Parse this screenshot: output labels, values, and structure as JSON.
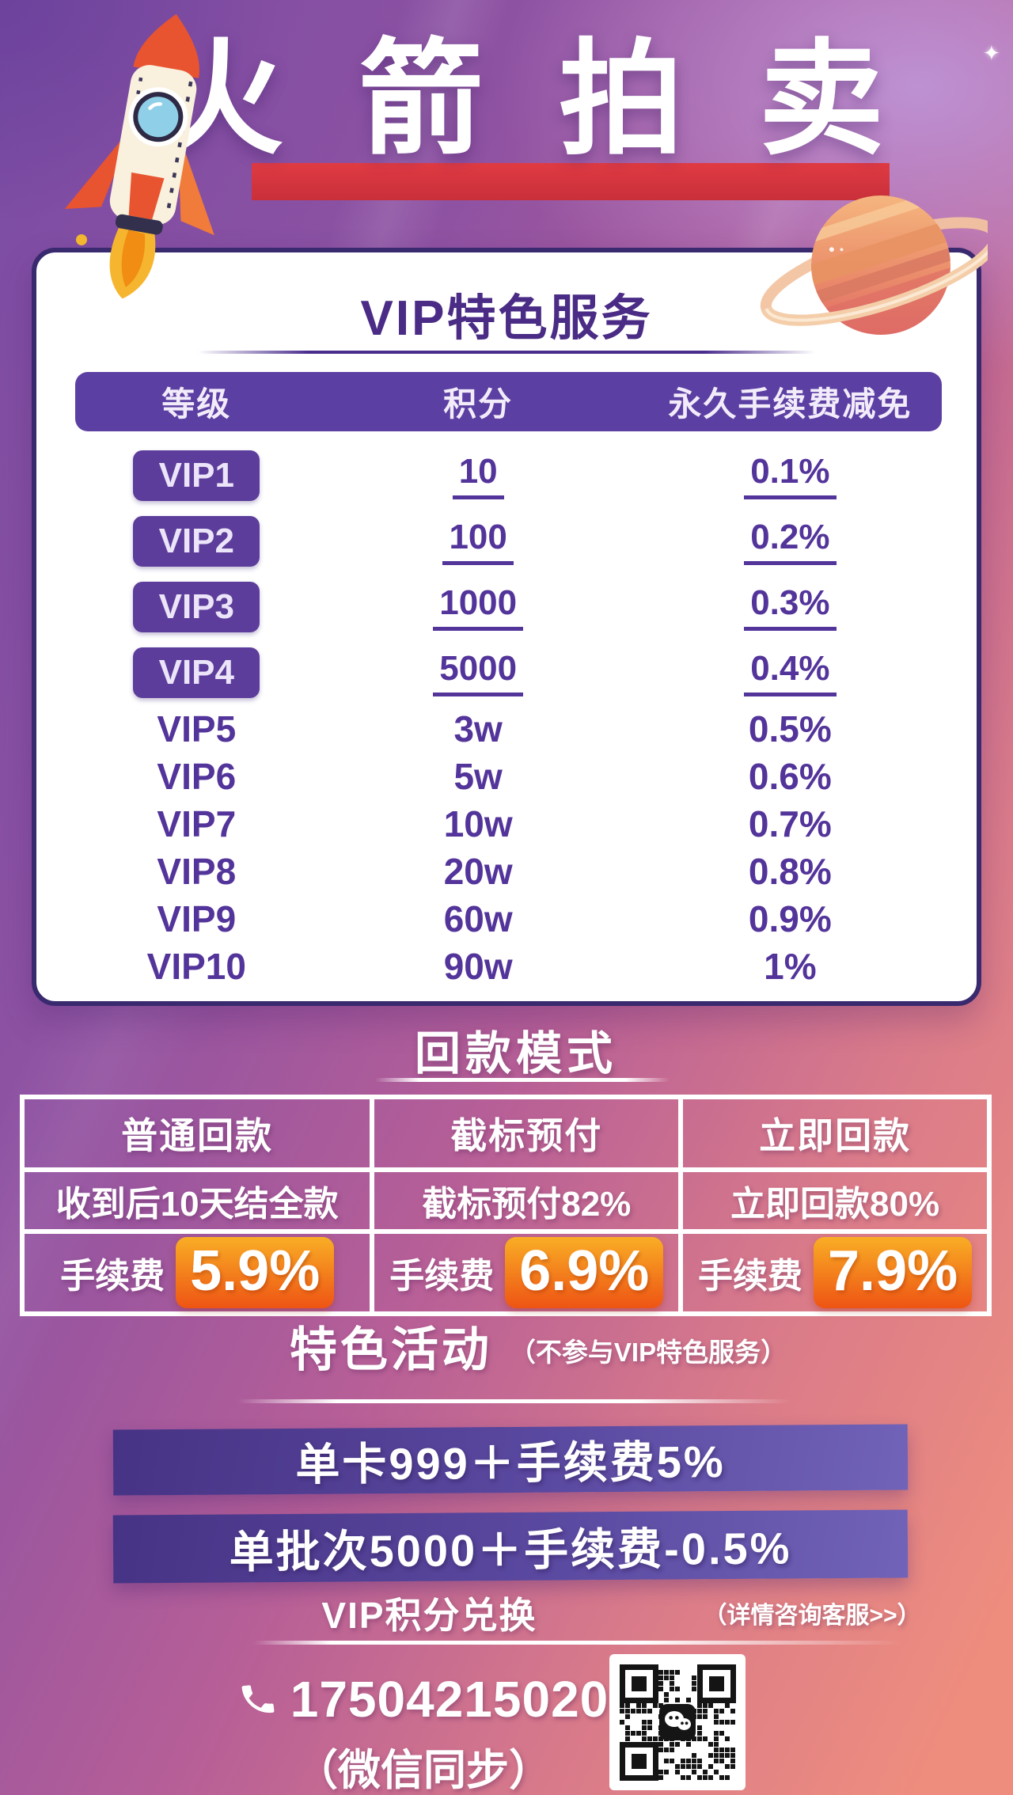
{
  "header": {
    "title": "火箭拍卖"
  },
  "vip_section": {
    "title": "VIP特色服务",
    "columns": [
      "等级",
      "积分",
      "永久手续费减免"
    ],
    "rows": [
      {
        "level": "VIP1",
        "points": "10",
        "discount": "0.1%"
      },
      {
        "level": "VIP2",
        "points": "100",
        "discount": "0.2%"
      },
      {
        "level": "VIP3",
        "points": "1000",
        "discount": "0.3%"
      },
      {
        "level": "VIP4",
        "points": "5000",
        "discount": "0.4%"
      },
      {
        "level": "VIP5",
        "points": "3w",
        "discount": "0.5%"
      },
      {
        "level": "VIP6",
        "points": "5w",
        "discount": "0.6%"
      },
      {
        "level": "VIP7",
        "points": "10w",
        "discount": "0.7%"
      },
      {
        "level": "VIP8",
        "points": "20w",
        "discount": "0.8%"
      },
      {
        "level": "VIP9",
        "points": "60w",
        "discount": "0.9%"
      },
      {
        "level": "VIP10",
        "points": "90w",
        "discount": "1%"
      }
    ]
  },
  "payment_section": {
    "title": "回款模式",
    "plans": [
      {
        "name": "普通回款",
        "detail": "收到后10天结全款",
        "fee_label": "手续费",
        "fee": "5.9%"
      },
      {
        "name": "截标预付",
        "detail": "截标预付82%",
        "fee_label": "手续费",
        "fee": "6.9%"
      },
      {
        "name": "立即回款",
        "detail": "立即回款80%",
        "fee_label": "手续费",
        "fee": "7.9%"
      }
    ]
  },
  "activity_section": {
    "title": "特色活动",
    "subtitle": "（不参与VIP特色服务）",
    "banners": [
      {
        "text": "单卡999＋手续费5%"
      },
      {
        "text": "单批次5000＋手续费-0.5%"
      }
    ],
    "exchange": {
      "label": "VIP积分兑换",
      "note": "（详情咨询客服>>）"
    }
  },
  "contact": {
    "phone": "17504215020",
    "wechat_note": "（微信同步）"
  },
  "icons": {
    "rocket": "rocket-illustration",
    "planet": "planet-illustration",
    "phone": "phone-icon",
    "qr": "wechat-qr-code"
  },
  "colors": {
    "accent_red": "#d5353f",
    "purple_dark": "#4a2b85",
    "purple_badge": "#5c3d9b",
    "header_bar": "#5c3fa2",
    "orange_badge_top": "#f9ae25",
    "orange_badge_bottom": "#ee5414",
    "banner_left": "#473385",
    "banner_right": "#7163b8",
    "bg_top": "#7a4ca4",
    "bg_bottom": "#ee8d7e"
  }
}
